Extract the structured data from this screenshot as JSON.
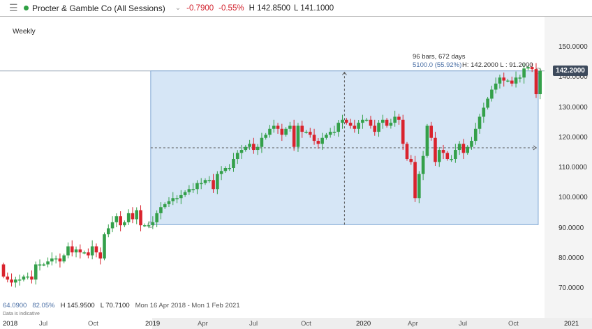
{
  "header": {
    "instrument": "Procter & Gamble Co (All Sessions)",
    "change": "-0.7900",
    "change_pct": "-0.55%",
    "high": "H 142.8500",
    "low": "L 141.1000",
    "status_color": "#2ea043"
  },
  "timeframe": "Weekly",
  "measure": {
    "line1": "96 bars, 672 days",
    "line2": "5100.0 (55.92%)",
    "line3": "H: 142.2000 L : 91.2000",
    "high": 142.2,
    "low": 91.2,
    "start_index": 37,
    "end_index": 132
  },
  "price_axis": {
    "ticks": [
      "150.0000",
      "140.0000",
      "130.0000",
      "120.0000",
      "110.0000",
      "100.0000",
      "90.0000",
      "80.0000",
      "70.0000"
    ],
    "current": "142.2000"
  },
  "time_axis": [
    {
      "label": "2018",
      "year": true
    },
    {
      "label": "Jul"
    },
    {
      "label": "Oct"
    },
    {
      "label": "2019",
      "year": true
    },
    {
      "label": "Apr"
    },
    {
      "label": "Jul"
    },
    {
      "label": "Oct"
    },
    {
      "label": "2020",
      "year": true
    },
    {
      "label": "Apr"
    },
    {
      "label": "Jul"
    },
    {
      "label": "Oct"
    },
    {
      "label": "2021",
      "year": true
    }
  ],
  "footer": {
    "change": "64.0900",
    "pct": "82.05%",
    "high": "H 145.9500",
    "low": "L 70.7100",
    "range": "Mon 16 Apr 2018 - Mon 1 Feb 2021",
    "note": "Data is indicative"
  },
  "chart_data": {
    "type": "candlestick",
    "first_open": 78,
    "colors": {
      "up": "#34a04a",
      "down": "#d9232d"
    },
    "closes": [
      74,
      73,
      72,
      73,
      73,
      74,
      74,
      73,
      78,
      78,
      78,
      79,
      80,
      80,
      79,
      81,
      84,
      82,
      83,
      82,
      82,
      81,
      84,
      82,
      80,
      88,
      90,
      92,
      94,
      91,
      92,
      95,
      93,
      96,
      91,
      91,
      91,
      92,
      95,
      97,
      98,
      99,
      100,
      100,
      101,
      102,
      103,
      103,
      105,
      105,
      106,
      106,
      103,
      108,
      109,
      110,
      110,
      113,
      115,
      116,
      117,
      118,
      116,
      117,
      120,
      121,
      123,
      124,
      123,
      121,
      123,
      124,
      117,
      124,
      122,
      122,
      121,
      119,
      118,
      120,
      121,
      122,
      122,
      125,
      126,
      125,
      124,
      123,
      125,
      126,
      126,
      124,
      122,
      125,
      126,
      124,
      125,
      127,
      126,
      118,
      113,
      112,
      100,
      108,
      114,
      124,
      120,
      112,
      116,
      115,
      113,
      113,
      116,
      118,
      115,
      117,
      119,
      123,
      127,
      130,
      133,
      136,
      138,
      140,
      139,
      139,
      138,
      140,
      140,
      143,
      143.5,
      142.8,
      134.5,
      142.2
    ]
  }
}
